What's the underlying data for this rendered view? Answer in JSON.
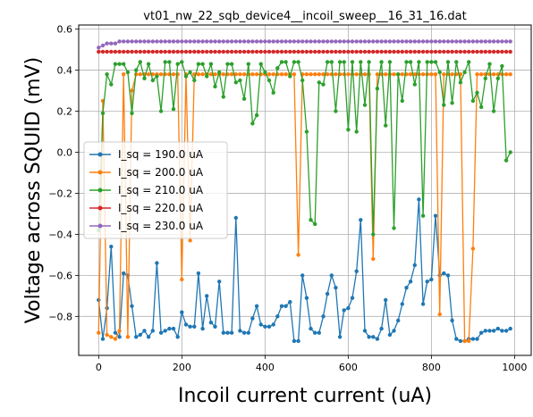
{
  "chart_data": {
    "type": "line",
    "title": "vt01_nw_22_sqb_device4__incoil_sweep__16_31_16.dat",
    "xlabel": "Incoil current current (uA)",
    "ylabel": "Voltage across SQUID (mV)",
    "xlim": [
      -48,
      1040
    ],
    "ylim": [
      -0.99,
      0.62
    ],
    "xticks": [
      0,
      200,
      400,
      600,
      800,
      1000
    ],
    "yticks": [
      -0.8,
      -0.6,
      -0.4,
      -0.2,
      0.0,
      0.2,
      0.4,
      0.6
    ],
    "xtick_labels": [
      "0",
      "200",
      "400",
      "600",
      "800",
      "1000"
    ],
    "ytick_labels": [
      "−0.8",
      "−0.6",
      "−0.4",
      "−0.2",
      "0.0",
      "0.2",
      "0.4",
      "0.6"
    ],
    "grid": true,
    "legend_position": "center-left",
    "x": [
      0,
      10,
      20,
      30,
      40,
      50,
      60,
      70,
      80,
      90,
      100,
      110,
      120,
      130,
      140,
      150,
      160,
      170,
      180,
      190,
      200,
      210,
      220,
      230,
      240,
      250,
      260,
      270,
      280,
      290,
      300,
      310,
      320,
      330,
      340,
      350,
      360,
      370,
      380,
      390,
      400,
      410,
      420,
      430,
      440,
      450,
      460,
      470,
      480,
      490,
      500,
      510,
      520,
      530,
      540,
      550,
      560,
      570,
      580,
      590,
      600,
      610,
      620,
      630,
      640,
      650,
      660,
      670,
      680,
      690,
      700,
      710,
      720,
      730,
      740,
      750,
      760,
      770,
      780,
      790,
      800,
      810,
      820,
      830,
      840,
      850,
      860,
      870,
      880,
      890,
      900,
      910,
      920,
      930,
      940,
      950,
      960,
      970,
      980,
      990
    ],
    "series": [
      {
        "name": "I_sq = 190.0 uA",
        "color": "#1f77b4",
        "values": [
          -0.72,
          -0.91,
          -0.76,
          -0.46,
          -0.88,
          -0.9,
          -0.59,
          -0.6,
          -0.75,
          -0.9,
          -0.89,
          -0.87,
          -0.9,
          -0.87,
          -0.54,
          -0.88,
          -0.87,
          -0.86,
          -0.86,
          -0.9,
          -0.78,
          -0.84,
          -0.85,
          -0.85,
          -0.59,
          -0.86,
          -0.7,
          -0.83,
          -0.85,
          -0.63,
          -0.88,
          -0.88,
          -0.88,
          -0.32,
          -0.87,
          -0.88,
          -0.88,
          -0.81,
          -0.75,
          -0.84,
          -0.85,
          -0.85,
          -0.84,
          -0.8,
          -0.75,
          -0.75,
          -0.73,
          -0.92,
          -0.92,
          -0.6,
          -0.71,
          -0.86,
          -0.88,
          -0.88,
          -0.8,
          -0.69,
          -0.6,
          -0.66,
          -0.9,
          -0.77,
          -0.76,
          -0.71,
          -0.58,
          -0.33,
          -0.87,
          -0.9,
          -0.9,
          -0.91,
          -0.86,
          -0.72,
          -0.89,
          -0.87,
          -0.82,
          -0.74,
          -0.66,
          -0.63,
          -0.55,
          -0.23,
          -0.74,
          -0.63,
          -0.62,
          -0.31,
          -0.6,
          -0.59,
          -0.6,
          -0.82,
          -0.91,
          -0.92,
          -0.92,
          -0.91,
          -0.91,
          -0.91,
          -0.88,
          -0.87,
          -0.87,
          -0.87,
          -0.86,
          -0.87,
          -0.87,
          -0.86
        ]
      },
      {
        "name": "I_sq = 200.0 uA",
        "color": "#ff7f0e",
        "values": [
          -0.88,
          0.25,
          -0.89,
          -0.9,
          -0.91,
          -0.87,
          0.38,
          -0.9,
          0.3,
          0.38,
          0.38,
          0.38,
          0.38,
          0.38,
          0.38,
          0.38,
          0.38,
          0.38,
          0.38,
          0.38,
          -0.62,
          0.38,
          -0.43,
          0.38,
          0.38,
          0.38,
          0.38,
          0.38,
          0.38,
          0.38,
          0.38,
          0.38,
          0.38,
          0.38,
          0.38,
          0.38,
          0.38,
          0.38,
          0.38,
          0.38,
          0.38,
          0.38,
          0.38,
          0.38,
          0.38,
          0.38,
          0.38,
          0.38,
          -0.5,
          0.38,
          0.38,
          0.38,
          0.38,
          0.38,
          0.38,
          0.38,
          0.38,
          0.38,
          0.38,
          0.38,
          0.38,
          0.38,
          0.38,
          0.38,
          0.38,
          0.38,
          -0.52,
          0.38,
          0.38,
          0.38,
          0.38,
          0.38,
          0.38,
          0.38,
          0.38,
          0.38,
          0.38,
          0.38,
          0.38,
          0.38,
          0.38,
          0.38,
          -0.79,
          0.38,
          0.38,
          0.38,
          0.38,
          0.38,
          -0.92,
          -0.92,
          -0.47,
          0.38,
          0.38,
          0.38,
          0.38,
          0.38,
          0.38,
          0.38,
          0.38,
          0.38
        ]
      },
      {
        "name": "I_sq = 210.0 uA",
        "color": "#2ca02c",
        "values": [
          -0.38,
          0.19,
          0.38,
          0.33,
          0.43,
          0.43,
          0.43,
          0.39,
          0.19,
          0.4,
          0.44,
          0.36,
          0.43,
          0.35,
          0.37,
          0.2,
          0.44,
          0.44,
          0.21,
          0.43,
          0.44,
          0.37,
          0.39,
          0.35,
          0.43,
          0.43,
          0.37,
          0.43,
          0.32,
          0.39,
          0.27,
          0.43,
          0.43,
          0.34,
          0.35,
          0.26,
          0.43,
          0.14,
          0.18,
          0.43,
          0.39,
          0.35,
          0.29,
          0.41,
          0.44,
          0.44,
          0.37,
          0.44,
          0.44,
          0.35,
          0.1,
          -0.33,
          -0.35,
          0.34,
          0.33,
          0.44,
          0.44,
          0.2,
          0.44,
          0.44,
          0.11,
          0.44,
          0.1,
          0.44,
          0.23,
          0.44,
          -0.4,
          0.31,
          0.44,
          0.13,
          0.44,
          -0.37,
          0.38,
          0.25,
          0.44,
          0.44,
          0.33,
          0.44,
          -0.31,
          0.44,
          0.44,
          0.44,
          0.39,
          0.23,
          0.44,
          0.24,
          0.44,
          0.34,
          0.39,
          0.44,
          0.25,
          0.29,
          0.22,
          0.36,
          0.43,
          0.2,
          0.36,
          0.42,
          -0.04,
          0.0
        ]
      },
      {
        "name": "I_sq = 220.0 uA",
        "color": "#d62728",
        "values": [
          0.49,
          0.49,
          0.49,
          0.49,
          0.49,
          0.49,
          0.49,
          0.49,
          0.49,
          0.49,
          0.49,
          0.49,
          0.49,
          0.49,
          0.49,
          0.49,
          0.49,
          0.49,
          0.49,
          0.49,
          0.49,
          0.49,
          0.49,
          0.49,
          0.49,
          0.49,
          0.49,
          0.49,
          0.49,
          0.49,
          0.49,
          0.49,
          0.49,
          0.49,
          0.49,
          0.49,
          0.49,
          0.49,
          0.49,
          0.49,
          0.49,
          0.49,
          0.49,
          0.49,
          0.49,
          0.49,
          0.49,
          0.49,
          0.49,
          0.49,
          0.49,
          0.49,
          0.49,
          0.49,
          0.49,
          0.49,
          0.49,
          0.49,
          0.49,
          0.49,
          0.49,
          0.49,
          0.49,
          0.49,
          0.49,
          0.49,
          0.49,
          0.49,
          0.49,
          0.49,
          0.49,
          0.49,
          0.49,
          0.49,
          0.49,
          0.49,
          0.49,
          0.49,
          0.49,
          0.49,
          0.49,
          0.49,
          0.49,
          0.49,
          0.49,
          0.49,
          0.49,
          0.49,
          0.49,
          0.49,
          0.49,
          0.49,
          0.49,
          0.49,
          0.49,
          0.49,
          0.49,
          0.49,
          0.49,
          0.49
        ]
      },
      {
        "name": "I_sq = 230.0 uA",
        "color": "#9467bd",
        "values": [
          0.51,
          0.52,
          0.53,
          0.53,
          0.53,
          0.54,
          0.54,
          0.54,
          0.54,
          0.54,
          0.54,
          0.54,
          0.54,
          0.54,
          0.54,
          0.54,
          0.54,
          0.54,
          0.54,
          0.54,
          0.54,
          0.54,
          0.54,
          0.54,
          0.54,
          0.54,
          0.54,
          0.54,
          0.54,
          0.54,
          0.54,
          0.54,
          0.54,
          0.54,
          0.54,
          0.54,
          0.54,
          0.54,
          0.54,
          0.54,
          0.54,
          0.54,
          0.54,
          0.54,
          0.54,
          0.54,
          0.54,
          0.54,
          0.54,
          0.54,
          0.54,
          0.54,
          0.54,
          0.54,
          0.54,
          0.54,
          0.54,
          0.54,
          0.54,
          0.54,
          0.54,
          0.54,
          0.54,
          0.54,
          0.54,
          0.54,
          0.54,
          0.54,
          0.54,
          0.54,
          0.54,
          0.54,
          0.54,
          0.54,
          0.54,
          0.54,
          0.54,
          0.54,
          0.54,
          0.54,
          0.54,
          0.54,
          0.54,
          0.54,
          0.54,
          0.54,
          0.54,
          0.54,
          0.54,
          0.54,
          0.54,
          0.54,
          0.54,
          0.54,
          0.54,
          0.54,
          0.54,
          0.54,
          0.54,
          0.54
        ]
      }
    ]
  }
}
